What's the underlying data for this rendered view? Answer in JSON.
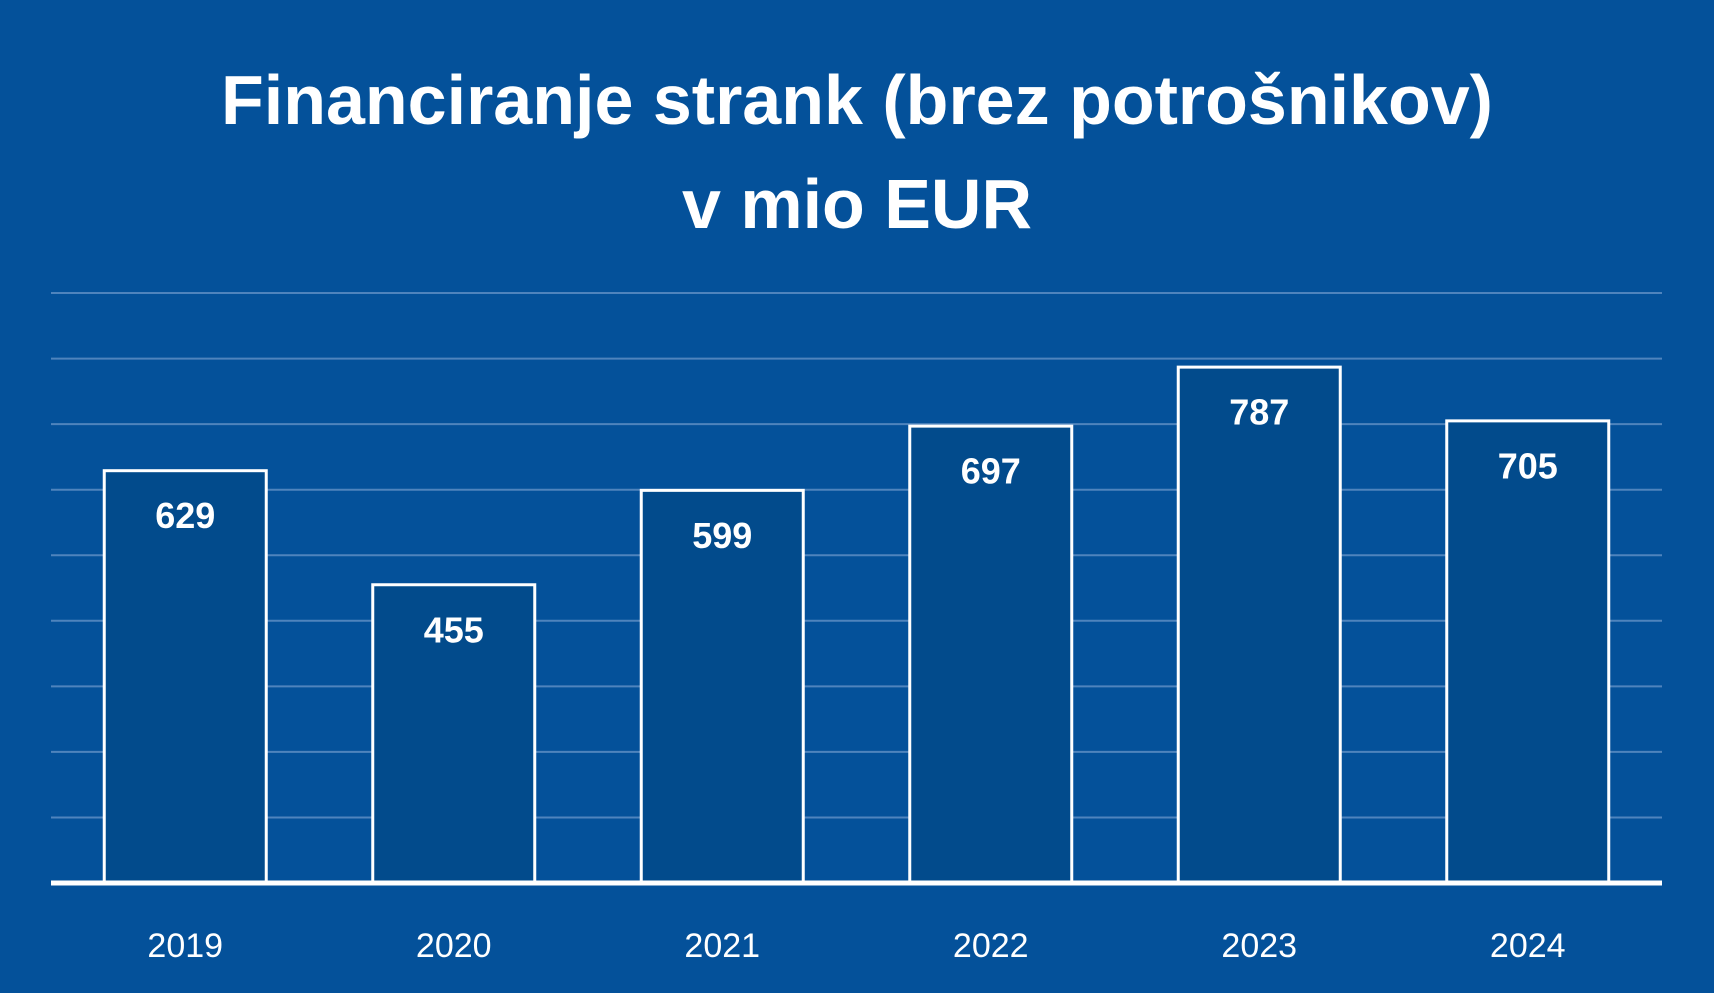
{
  "chart_data": {
    "type": "bar",
    "title_lines": [
      "Financiranje strank (brez potrošnikov)",
      "v mio EUR"
    ],
    "categories": [
      "2019",
      "2020",
      "2021",
      "2022",
      "2023",
      "2024"
    ],
    "values": [
      629,
      455,
      599,
      697,
      787,
      705
    ],
    "data_labels": [
      "629",
      "455",
      "599",
      "697",
      "787",
      "705"
    ],
    "xlabel": "",
    "ylabel": "",
    "ylim": [
      0,
      900
    ],
    "gridlines": true,
    "gridline_step": 100,
    "legend": "none",
    "colors": {
      "background": "#04519a",
      "bar_fill": "#024b8c",
      "bar_stroke": "#ffffff",
      "gridline": "#4f84bd",
      "text": "#ffffff"
    }
  }
}
